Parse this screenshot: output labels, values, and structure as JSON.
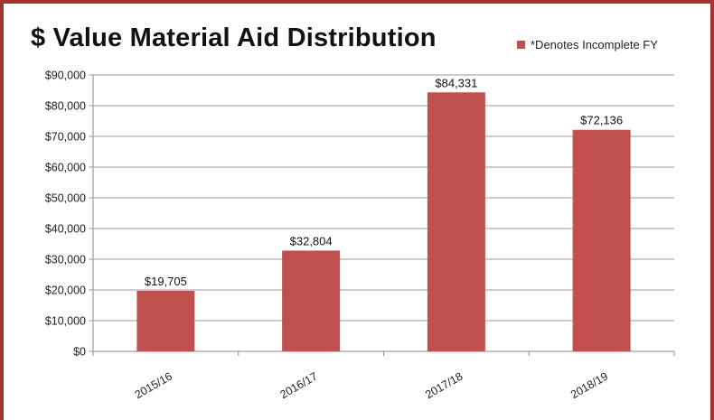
{
  "chart_data": {
    "type": "bar",
    "title": "$ Value Material Aid Distribution",
    "legend": {
      "label": "*Denotes Incomplete FY",
      "placement": "top-right"
    },
    "categories": [
      "2015/16",
      "2016/17",
      "2017/18",
      "2018/19"
    ],
    "values": [
      19705,
      32804,
      84331,
      72136
    ],
    "data_labels": [
      "$19,705",
      "$32,804",
      "$84,331",
      "$72,136"
    ],
    "y_ticks": [
      "$0",
      "$10,000",
      "$20,000",
      "$30,000",
      "$40,000",
      "$50,000",
      "$60,000",
      "$70,000",
      "$80,000",
      "$90,000"
    ],
    "ylim": [
      0,
      90000
    ],
    "xlabel": "",
    "ylabel": "",
    "grid": true,
    "bar_color": "#c0504d",
    "frame_color": "#a8322e"
  }
}
